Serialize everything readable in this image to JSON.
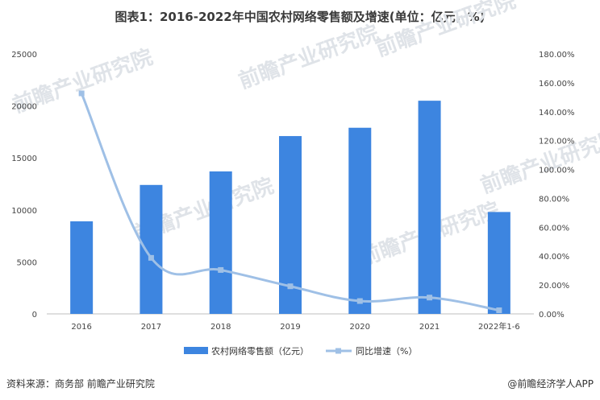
{
  "title": "图表1：2016-2022年中国农村网络零售额及增速(单位：亿元，%)",
  "source": "资料来源：商务部 前瞻产业研究院",
  "credit": "@前瞻经济学人APP",
  "watermark": "前瞻产业研究院",
  "chart_data": {
    "type": "bar",
    "categories": [
      "2016",
      "2017",
      "2018",
      "2019",
      "2020",
      "2021",
      "2022年1-6"
    ],
    "series": [
      {
        "name": "农村网络零售额（亿元）",
        "kind": "bar",
        "axis": "left",
        "color": "#3d85e0",
        "values": [
          8900,
          12400,
          13700,
          17100,
          17900,
          20500,
          9800
        ]
      },
      {
        "name": "同比增速（%）",
        "kind": "line",
        "axis": "right",
        "color": "#9fc0e6",
        "values": [
          152.7,
          38.8,
          30.4,
          19.1,
          8.9,
          11.3,
          2.5
        ]
      }
    ],
    "left_axis": {
      "ylim": [
        0,
        25000
      ],
      "ticks": [
        "0",
        "5000",
        "10000",
        "15000",
        "20000",
        "25000"
      ]
    },
    "right_axis": {
      "ylim": [
        0,
        180
      ],
      "ticks": [
        "0.00%",
        "20.00%",
        "40.00%",
        "60.00%",
        "80.00%",
        "100.00%",
        "120.00%",
        "140.00%",
        "160.00%",
        "180.00%"
      ]
    },
    "grid": false,
    "legend_position": "bottom-center"
  }
}
